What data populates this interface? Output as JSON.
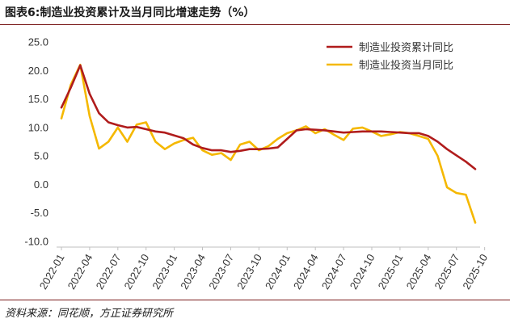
{
  "header": {
    "title": "图表6:制造业投资累计及当月同比增速走势（%）"
  },
  "footer": {
    "source": "资料来源：同花顺，方正证券研究所"
  },
  "colors": {
    "cumulative": "#b01c1c",
    "monthly": "#f5b800",
    "axis": "#bfbfbf"
  },
  "chart_data": {
    "type": "line",
    "ylim": [
      -10,
      25
    ],
    "yticks": [
      "25.0",
      "20.0",
      "15.0",
      "10.0",
      "5.0",
      "0.0",
      "-5.0",
      "-10.0"
    ],
    "ytick_values": [
      25,
      20,
      15,
      10,
      5,
      0,
      -5,
      -10
    ],
    "xticks": [
      "2022-01",
      "2022-04",
      "2022-07",
      "2022-10",
      "2023-01",
      "2023-04",
      "2023-07",
      "2023-10",
      "2024-01",
      "2024-04",
      "2024-07",
      "2024-10",
      "2025-01",
      "2025-04",
      "2025-07",
      "2025-10"
    ],
    "xtick_index": [
      0,
      3,
      6,
      9,
      12,
      15,
      18,
      21,
      24,
      27,
      30,
      33,
      36,
      39,
      42,
      45
    ],
    "grid": false,
    "legend": "top-right",
    "series": [
      {
        "name": "制造业投资累计同比",
        "key": "cumulative",
        "values": [
          13.5,
          17.0,
          20.9,
          15.9,
          12.5,
          10.9,
          10.4,
          10.0,
          10.1,
          9.7,
          9.3,
          9.1,
          8.6,
          8.1,
          7.0,
          6.4,
          6.0,
          6.0,
          5.7,
          5.9,
          6.2,
          6.2,
          6.3,
          6.5,
          8.0,
          9.5,
          9.7,
          9.6,
          9.5,
          9.3,
          9.1,
          9.2,
          9.3,
          9.3,
          9.3,
          9.2,
          9.1,
          9.0,
          9.0,
          8.5,
          7.5,
          6.2,
          5.1,
          4.0,
          2.7
        ]
      },
      {
        "name": "制造业投资当月同比",
        "key": "monthly",
        "values": [
          11.6,
          17.5,
          21.0,
          12.0,
          6.3,
          7.5,
          10.0,
          7.5,
          10.5,
          10.9,
          7.5,
          6.2,
          7.2,
          7.8,
          8.2,
          6.0,
          5.2,
          5.5,
          4.3,
          7.0,
          7.5,
          6.0,
          6.7,
          8.0,
          9.0,
          9.5,
          10.2,
          9.0,
          9.7,
          8.7,
          7.8,
          9.8,
          10.0,
          9.3,
          8.5,
          8.8,
          9.2,
          9.0,
          8.5,
          8.0,
          5.0,
          -0.5,
          -1.5,
          -1.8,
          -6.7
        ]
      }
    ]
  }
}
